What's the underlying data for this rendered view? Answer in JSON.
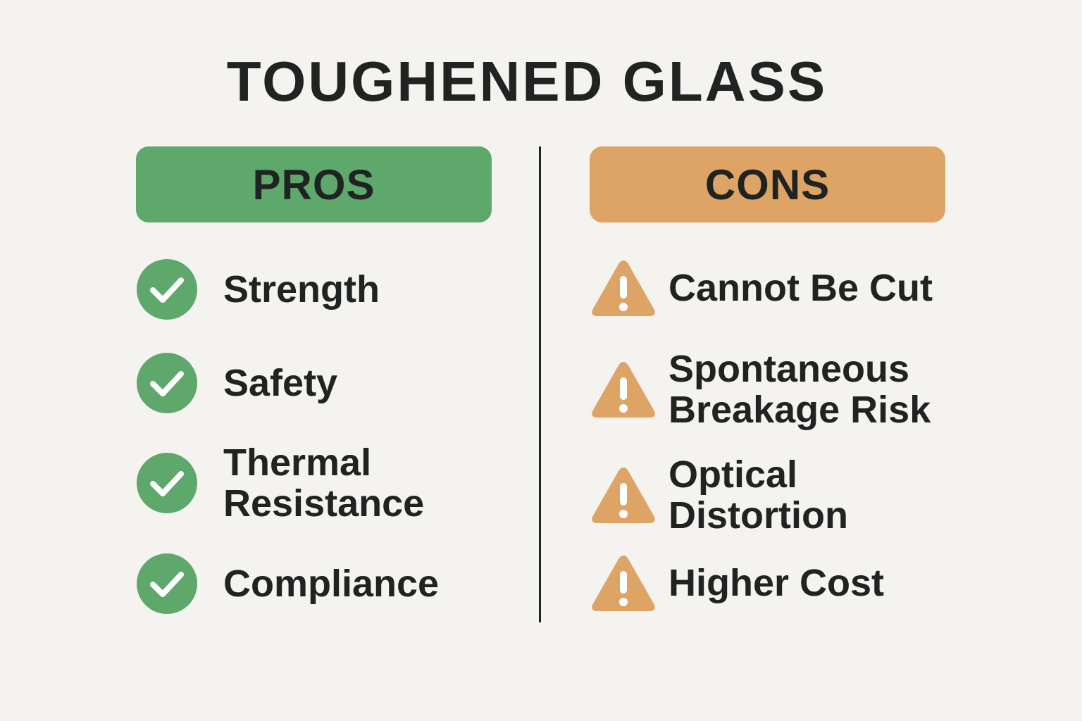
{
  "title": "TOUGHENED GLASS",
  "pros": {
    "header": "PROS",
    "items": [
      "Strength",
      "Safety",
      "Thermal Resistance",
      "Compliance"
    ]
  },
  "cons": {
    "header": "CONS",
    "items": [
      "Cannot Be Cut",
      "Spontaneous Breakage Risk",
      "Optical Distortion",
      "Higher Cost"
    ]
  }
}
